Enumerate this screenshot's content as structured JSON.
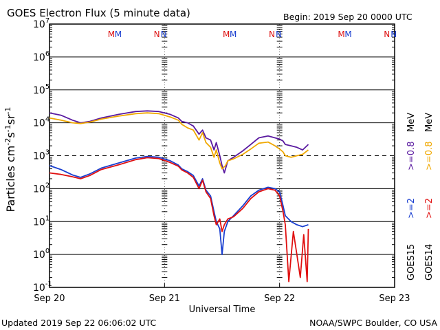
{
  "header": {
    "title": "GOES Electron Flux (5 minute data)",
    "begin": "Begin: 2019 Sep 20 0000 UTC"
  },
  "footer": {
    "updated": "Updated 2019 Sep 22 06:06:02 UTC",
    "credit": "NOAA/SWPC Boulder, CO USA"
  },
  "markers": {
    "m": "M",
    "n": "N",
    "m_color": "#d11",
    "m_color2": "#1a3fd0",
    "n_color": "#d11",
    "n_color2": "#1a3fd0",
    "m_positions_days": [
      0.56,
      1.56,
      2.56
    ],
    "n_positions_days": [
      0.96,
      1.96,
      2.96
    ]
  },
  "colors": {
    "purple": "#5a1aa0",
    "orange": "#f0a800",
    "blue": "#1a3fd0",
    "red": "#e01010"
  },
  "legend": {
    "goes15": "GOES15",
    "goes14": "GOES14",
    "ge2_purple": ">=0.8 MeV",
    "ge2_blue": ">=2 MeV",
    "label_b": ">=2",
    "label_r": ">=2",
    "label_p": ">=0.8",
    "label_o": ">=0.8",
    "unit": "MeV"
  },
  "chart_data": {
    "type": "line",
    "title": "GOES Electron Flux (5 minute data)",
    "xlabel": "Universal Time",
    "ylabel": "Particles cm-2s-1sr-1",
    "yscale": "log",
    "ylim": [
      0.1,
      10000000
    ],
    "xlim": [
      0,
      3
    ],
    "x_ticks": [
      "Sep 20",
      "Sep 21",
      "Sep 22",
      "Sep 23"
    ],
    "y_ticks": [
      "10^-1",
      "10^0",
      "10^1",
      "10^2",
      "10^3",
      "10^4",
      "10^5",
      "10^6",
      "10^7"
    ],
    "threshold": 1000,
    "series": [
      {
        "name": "GOES15 >=0.8 MeV",
        "color": "#5a1aa0",
        "points": [
          [
            0.0,
            20000
          ],
          [
            0.1,
            17000
          ],
          [
            0.2,
            12000
          ],
          [
            0.27,
            10000
          ],
          [
            0.35,
            11000
          ],
          [
            0.45,
            14000
          ],
          [
            0.6,
            18000
          ],
          [
            0.75,
            22000
          ],
          [
            0.85,
            23000
          ],
          [
            0.95,
            22000
          ],
          [
            1.05,
            18000
          ],
          [
            1.12,
            14000
          ],
          [
            1.15,
            11000
          ],
          [
            1.2,
            10000
          ],
          [
            1.25,
            8000
          ],
          [
            1.3,
            4500
          ],
          [
            1.33,
            6000
          ],
          [
            1.36,
            3500
          ],
          [
            1.4,
            3000
          ],
          [
            1.43,
            1500
          ],
          [
            1.45,
            2500
          ],
          [
            1.48,
            1000
          ],
          [
            1.5,
            500
          ],
          [
            1.52,
            300
          ],
          [
            1.55,
            700
          ],
          [
            1.6,
            900
          ],
          [
            1.68,
            1400
          ],
          [
            1.75,
            2200
          ],
          [
            1.82,
            3500
          ],
          [
            1.9,
            4000
          ],
          [
            1.96,
            3500
          ],
          [
            2.0,
            3200
          ],
          [
            2.03,
            2800
          ],
          [
            2.05,
            2200
          ],
          [
            2.1,
            2000
          ],
          [
            2.15,
            1800
          ],
          [
            2.2,
            1500
          ],
          [
            2.25,
            2200
          ]
        ]
      },
      {
        "name": "GOES14 >=0.8 MeV",
        "color": "#f0a800",
        "points": [
          [
            0.0,
            14000
          ],
          [
            0.1,
            12000
          ],
          [
            0.2,
            10000
          ],
          [
            0.27,
            9500
          ],
          [
            0.35,
            10500
          ],
          [
            0.45,
            13000
          ],
          [
            0.6,
            16000
          ],
          [
            0.75,
            19000
          ],
          [
            0.85,
            20000
          ],
          [
            0.95,
            19000
          ],
          [
            1.05,
            15000
          ],
          [
            1.12,
            12000
          ],
          [
            1.15,
            9000
          ],
          [
            1.2,
            7000
          ],
          [
            1.25,
            6000
          ],
          [
            1.3,
            3000
          ],
          [
            1.33,
            5000
          ],
          [
            1.36,
            2500
          ],
          [
            1.4,
            1800
          ],
          [
            1.43,
            900
          ],
          [
            1.45,
            1500
          ],
          [
            1.48,
            600
          ],
          [
            1.5,
            400
          ],
          [
            1.53,
            500
          ],
          [
            1.55,
            700
          ],
          [
            1.6,
            800
          ],
          [
            1.68,
            1100
          ],
          [
            1.75,
            1600
          ],
          [
            1.82,
            2400
          ],
          [
            1.9,
            2600
          ],
          [
            1.96,
            2000
          ],
          [
            2.0,
            1600
          ],
          [
            2.03,
            1300
          ],
          [
            2.05,
            1000
          ],
          [
            2.1,
            900
          ],
          [
            2.15,
            1000
          ],
          [
            2.2,
            1100
          ],
          [
            2.25,
            1500
          ]
        ]
      },
      {
        "name": "GOES15 >=2 MeV",
        "color": "#1a3fd0",
        "points": [
          [
            0.0,
            500
          ],
          [
            0.1,
            380
          ],
          [
            0.2,
            260
          ],
          [
            0.27,
            220
          ],
          [
            0.35,
            280
          ],
          [
            0.45,
            420
          ],
          [
            0.6,
            600
          ],
          [
            0.75,
            850
          ],
          [
            0.85,
            950
          ],
          [
            0.95,
            900
          ],
          [
            1.05,
            700
          ],
          [
            1.12,
            520
          ],
          [
            1.15,
            400
          ],
          [
            1.2,
            330
          ],
          [
            1.25,
            250
          ],
          [
            1.3,
            120
          ],
          [
            1.33,
            200
          ],
          [
            1.36,
            90
          ],
          [
            1.4,
            60
          ],
          [
            1.43,
            20
          ],
          [
            1.45,
            10
          ],
          [
            1.48,
            6
          ],
          [
            1.5,
            1
          ],
          [
            1.52,
            5
          ],
          [
            1.55,
            10
          ],
          [
            1.6,
            15
          ],
          [
            1.68,
            30
          ],
          [
            1.75,
            60
          ],
          [
            1.82,
            90
          ],
          [
            1.9,
            110
          ],
          [
            1.96,
            100
          ],
          [
            2.0,
            80
          ],
          [
            2.03,
            30
          ],
          [
            2.05,
            15
          ],
          [
            2.1,
            10
          ],
          [
            2.15,
            8
          ],
          [
            2.2,
            7
          ],
          [
            2.25,
            8
          ]
        ]
      },
      {
        "name": "GOES14 >=2 MeV",
        "color": "#e01010",
        "points": [
          [
            0.0,
            300
          ],
          [
            0.1,
            270
          ],
          [
            0.2,
            230
          ],
          [
            0.27,
            200
          ],
          [
            0.35,
            250
          ],
          [
            0.45,
            380
          ],
          [
            0.6,
            530
          ],
          [
            0.75,
            760
          ],
          [
            0.85,
            870
          ],
          [
            0.95,
            820
          ],
          [
            1.05,
            620
          ],
          [
            1.12,
            480
          ],
          [
            1.15,
            370
          ],
          [
            1.2,
            300
          ],
          [
            1.25,
            220
          ],
          [
            1.3,
            100
          ],
          [
            1.33,
            180
          ],
          [
            1.36,
            80
          ],
          [
            1.4,
            50
          ],
          [
            1.43,
            15
          ],
          [
            1.45,
            8
          ],
          [
            1.48,
            12
          ],
          [
            1.5,
            5
          ],
          [
            1.52,
            8
          ],
          [
            1.55,
            12
          ],
          [
            1.6,
            14
          ],
          [
            1.68,
            25
          ],
          [
            1.75,
            50
          ],
          [
            1.82,
            80
          ],
          [
            1.9,
            100
          ],
          [
            1.96,
            90
          ],
          [
            2.0,
            60
          ],
          [
            2.03,
            20
          ],
          [
            2.05,
            8
          ],
          [
            2.08,
            0.15
          ],
          [
            2.12,
            5
          ],
          [
            2.15,
            1
          ],
          [
            2.18,
            0.2
          ],
          [
            2.21,
            4
          ],
          [
            2.24,
            0.15
          ],
          [
            2.25,
            6
          ]
        ]
      }
    ]
  }
}
